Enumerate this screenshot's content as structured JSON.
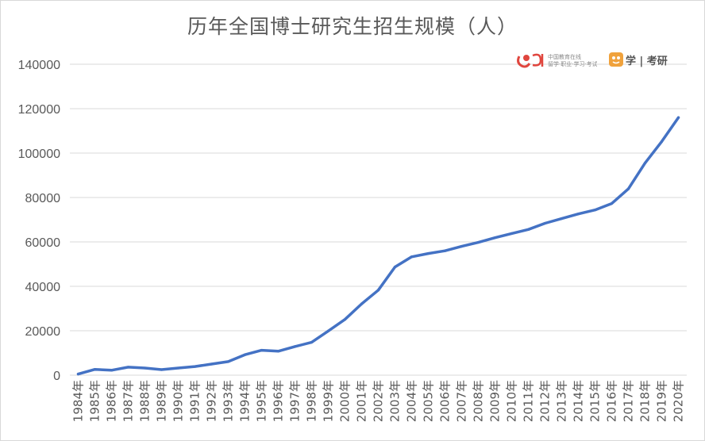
{
  "chart_data": {
    "type": "line",
    "title": "历年全国博士研究生招生规模（人）",
    "xlabel": "",
    "ylabel": "",
    "ylim": [
      0,
      140000
    ],
    "yticks": [
      0,
      20000,
      40000,
      60000,
      80000,
      100000,
      120000,
      140000
    ],
    "grid": true,
    "legend": "none",
    "categories": [
      "1984年",
      "1985年",
      "1986年",
      "1987年",
      "1988年",
      "1989年",
      "1990年",
      "1991年",
      "1992年",
      "1993年",
      "1994年",
      "1995年",
      "1996年",
      "1997年",
      "1998年",
      "1999年",
      "2000年",
      "2001年",
      "2002年",
      "2003年",
      "2004年",
      "2005年",
      "2006年",
      "2007年",
      "2008年",
      "2009年",
      "2010年",
      "2011年",
      "2012年",
      "2013年",
      "2014年",
      "2015年",
      "2016年",
      "2017年",
      "2018年",
      "2019年",
      "2020年"
    ],
    "series": [
      {
        "color": "#4472c4",
        "values": [
          500,
          2600,
          2200,
          3600,
          3200,
          2500,
          3200,
          3900,
          5000,
          6100,
          9200,
          11200,
          10800,
          12900,
          14800,
          19900,
          25100,
          32100,
          38300,
          48700,
          53300,
          54800,
          56000,
          58000,
          59800,
          61900,
          63800,
          65600,
          68400,
          70500,
          72600,
          74400,
          77300,
          83900,
          95500,
          105200,
          116000
        ]
      }
    ]
  },
  "logos": {
    "left": {
      "caption_top": "中国教育在线",
      "caption_bottom": "留学·职业·学习·考试"
    },
    "right": {
      "text": "学 | 考研"
    }
  }
}
